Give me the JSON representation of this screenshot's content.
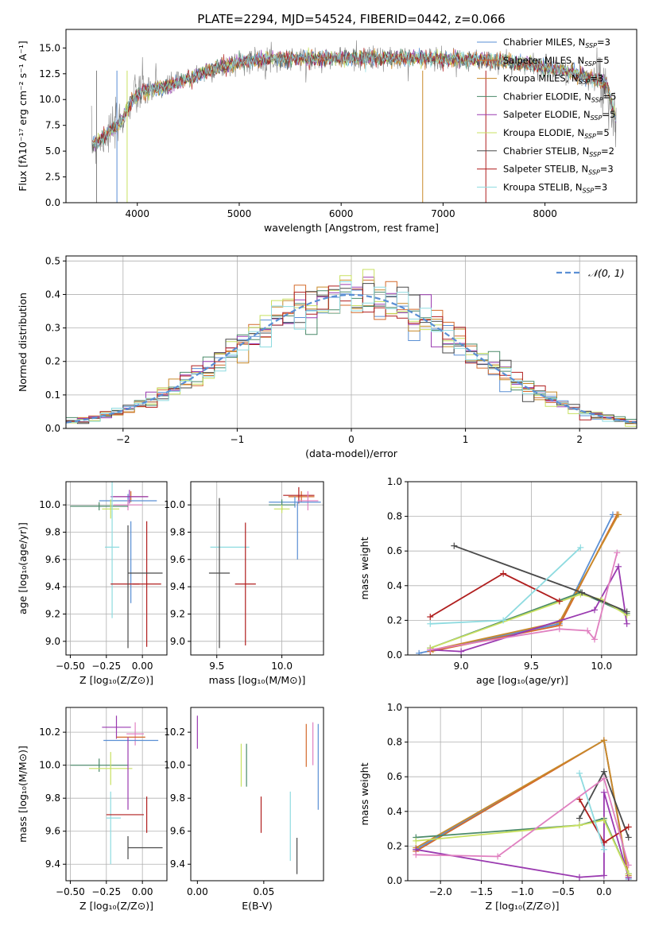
{
  "chart_data": [
    {
      "type": "line",
      "id": "spectrum",
      "title": "PLATE=2294, MJD=54524, FIBERID=0442, z=0.066",
      "xlabel": "wavelength [Angstrom, rest frame]",
      "ylabel": "Flux [fλ10⁻¹⁷ erg cm⁻² s⁻¹ A⁻¹]",
      "xlim": [
        3300,
        8900
      ],
      "ylim": [
        0,
        16.8
      ],
      "xticks": [
        4000,
        5000,
        6000,
        7000,
        8000
      ],
      "xtick_labels": [
        "4000",
        "5000",
        "6000",
        "7000",
        "8000"
      ],
      "yticks": [
        0,
        2.5,
        5,
        7.5,
        10,
        12.5,
        15
      ],
      "ytick_labels": [
        "0.0",
        "2.5",
        "5.0",
        "7.5",
        "10.0",
        "12.5",
        "15.0"
      ],
      "grid": false,
      "legend": "upper-right",
      "legend_entries": [
        {
          "label": "Chabrier MILES, N",
          "sub": "SSP",
          "suffix": "=3",
          "color": "#5a8fd4"
        },
        {
          "label": "Salpeter MILES, N",
          "sub": "SSP",
          "suffix": "=5",
          "color": "#d46a2a"
        },
        {
          "label": "Kroupa MILES, N",
          "sub": "SSP",
          "suffix": "=3",
          "color": "#c88a2a"
        },
        {
          "label": "Chabrier ELODIE, N",
          "sub": "SSP",
          "suffix": "=5",
          "color": "#4a8a6a"
        },
        {
          "label": "Salpeter ELODIE, N",
          "sub": "SSP",
          "suffix": "=5",
          "color": "#9a3ab0"
        },
        {
          "label": "Kroupa ELODIE, N",
          "sub": "SSP",
          "suffix": "=5",
          "color": "#c8e060"
        },
        {
          "label": "Chabrier STELIB, N",
          "sub": "SSP",
          "suffix": "=2",
          "color": "#4a4a4a"
        },
        {
          "label": "Salpeter STELIB, N",
          "sub": "SSP",
          "suffix": "=3",
          "color": "#b01e1e"
        },
        {
          "label": "Kroupa STELIB, N",
          "sub": "SSP",
          "suffix": "=3",
          "color": "#8edbe0"
        }
      ],
      "data_color": "#808080",
      "continuum": {
        "x": [
          3550,
          3650,
          3750,
          3850,
          3950,
          4050,
          4150,
          4300,
          4500,
          4700,
          5000,
          5300,
          5600,
          6000,
          6400,
          6800,
          7200,
          7600,
          8000,
          8300,
          8600,
          8700
        ],
        "y": [
          5.5,
          6.2,
          7.0,
          8.0,
          10.0,
          10.8,
          11.0,
          11.3,
          12.0,
          12.8,
          13.6,
          13.9,
          14.0,
          14.0,
          14.0,
          14.0,
          13.9,
          13.7,
          13.2,
          12.5,
          11.6,
          8.0
        ]
      }
    },
    {
      "type": "bar",
      "id": "residuals",
      "xlabel": "(data-model)/error",
      "ylabel": "Normed distribution",
      "xlim": [
        -2.5,
        2.5
      ],
      "ylim": [
        0,
        0.515
      ],
      "xticks": [
        -2,
        -1,
        0,
        1,
        2
      ],
      "xtick_labels": [
        "−2",
        "−1",
        "0",
        "1",
        "2"
      ],
      "yticks": [
        0,
        0.1,
        0.2,
        0.3,
        0.4,
        0.5
      ],
      "ytick_labels": [
        "0.0",
        "0.1",
        "0.2",
        "0.3",
        "0.4",
        "0.5"
      ],
      "grid": true,
      "legend": "upper-right",
      "gauss_label": "𝒩(0, 1)",
      "gauss_color": "#5a8fd4"
    },
    {
      "type": "scatter",
      "id": "age-vs-Z",
      "xlabel": "Z [log₁₀(Z/Z⊙)]",
      "ylabel": "age  [log₁₀(age/yr)]",
      "xlim": [
        -0.53,
        0.17
      ],
      "ylim": [
        8.9,
        10.17
      ],
      "xticks": [
        -0.5,
        -0.25,
        0.0
      ],
      "xtick_labels": [
        "−0.50",
        "−0.25",
        "0.00"
      ],
      "yticks": [
        9.0,
        9.2,
        9.4,
        9.6,
        9.8,
        10.0
      ],
      "ytick_labels": [
        "9.0",
        "9.2",
        "9.4",
        "9.6",
        "9.8",
        "10.0"
      ],
      "grid": true,
      "points": [
        {
          "x": -0.08,
          "y": 10.06,
          "xerr": 0.12,
          "yerr": 0.04,
          "color": "#d46a2a"
        },
        {
          "x": -0.1,
          "y": 10.03,
          "xerr": 0.2,
          "yerr": 0.05,
          "color": "#5a8fd4"
        },
        {
          "x": -0.09,
          "y": 10.06,
          "xerr": 0.13,
          "yerr": 0.05,
          "color": "#9a3ab0"
        },
        {
          "x": -0.1,
          "y": 10.0,
          "xerr": 0.1,
          "yerr": 0.04,
          "color": "#e080c0"
        },
        {
          "x": -0.3,
          "y": 9.99,
          "xerr": 0.2,
          "yerr": 0.03,
          "color": "#4a8a6a"
        },
        {
          "x": -0.22,
          "y": 9.97,
          "xerr": 0.06,
          "yerr": 0.07,
          "color": "#c8e060"
        },
        {
          "x": -0.21,
          "y": 9.69,
          "xerr": 0.05,
          "yerr": 0.52,
          "color": "#8edbe0"
        },
        {
          "x": -0.08,
          "y": 9.58,
          "xerr": 0.0,
          "yerr": 0.3,
          "color": "#5a8fd4"
        },
        {
          "x": 0.03,
          "y": 9.42,
          "xerr": 0.1,
          "yerr": 0.46,
          "color": "#b01e1e"
        },
        {
          "x": -0.12,
          "y": 9.42,
          "xerr": 0.1,
          "yerr": 0.0,
          "color": "#b01e1e"
        },
        {
          "x": 0.02,
          "y": 9.5,
          "xerr": 0.12,
          "yerr": 0.0,
          "color": "#4a4a4a"
        },
        {
          "x": -0.1,
          "y": 9.4,
          "xerr": 0.0,
          "yerr": 0.45,
          "color": "#4a4a4a"
        }
      ]
    },
    {
      "type": "scatter",
      "id": "age-vs-mass",
      "xlabel": "mass [log₁₀(M/M⊙)]",
      "xlim": [
        9.3,
        10.32
      ],
      "ylim": [
        8.9,
        10.17
      ],
      "xticks": [
        9.5,
        10.0
      ],
      "xtick_labels": [
        "9.5",
        "10.0"
      ],
      "yticks": [
        9.0,
        9.2,
        9.4,
        9.6,
        9.8,
        10.0
      ],
      "ytick_labels": [
        "9.0",
        "9.2",
        "9.4",
        "9.6",
        "9.8",
        "10.0"
      ],
      "grid": true,
      "points": [
        {
          "x": 10.15,
          "y": 10.06,
          "xerr": 0.1,
          "yerr": 0.04,
          "color": "#d46a2a"
        },
        {
          "x": 10.13,
          "y": 10.07,
          "xerr": 0.12,
          "yerr": 0.06,
          "color": "#b01e1e"
        },
        {
          "x": 10.2,
          "y": 10.03,
          "xerr": 0.08,
          "yerr": 0.07,
          "color": "#e080c0"
        },
        {
          "x": 10.1,
          "y": 10.02,
          "xerr": 0.2,
          "yerr": 0.04,
          "color": "#5a8fd4"
        },
        {
          "x": 10.12,
          "y": 9.81,
          "xerr": 0.0,
          "yerr": 0.21,
          "color": "#5a8fd4"
        },
        {
          "x": 10.0,
          "y": 10.0,
          "xerr": 0.1,
          "yerr": 0.04,
          "color": "#4a8a6a"
        },
        {
          "x": 10.0,
          "y": 9.97,
          "xerr": 0.06,
          "yerr": 0.03,
          "color": "#c8e060"
        },
        {
          "x": 9.6,
          "y": 9.69,
          "xerr": 0.15,
          "yerr": 0.0,
          "color": "#8edbe0"
        },
        {
          "x": 9.72,
          "y": 9.42,
          "xerr": 0.08,
          "yerr": 0.45,
          "color": "#b01e1e"
        },
        {
          "x": 9.52,
          "y": 9.5,
          "xerr": 0.08,
          "yerr": 0.55,
          "color": "#4a4a4a"
        }
      ]
    },
    {
      "type": "line",
      "id": "weights-vs-age",
      "xlabel": "age  [log₁₀(age/yr)]",
      "ylabel": "mass weight",
      "xlim": [
        8.62,
        10.25
      ],
      "ylim": [
        0,
        1.0
      ],
      "xticks": [
        9.0,
        9.5,
        10.0
      ],
      "xtick_labels": [
        "9.0",
        "9.5",
        "10.0"
      ],
      "yticks": [
        0,
        0.2,
        0.4,
        0.6,
        0.8,
        1.0
      ],
      "ytick_labels": [
        "0.0",
        "0.2",
        "0.4",
        "0.6",
        "0.8",
        "1.0"
      ],
      "grid": true,
      "series": [
        {
          "color": "#5a8fd4",
          "x": [
            8.7,
            9.7,
            10.08
          ],
          "y": [
            0.01,
            0.18,
            0.81
          ]
        },
        {
          "color": "#d46a2a",
          "x": [
            8.78,
            9.7,
            10.11
          ],
          "y": [
            0.02,
            0.17,
            0.81
          ]
        },
        {
          "color": "#c88a2a",
          "x": [
            8.8,
            9.7,
            10.12
          ],
          "y": [
            0.03,
            0.19,
            0.81
          ]
        },
        {
          "color": "#4a8a6a",
          "x": [
            8.78,
            9.85,
            10.18
          ],
          "y": [
            0.04,
            0.36,
            0.24
          ]
        },
        {
          "color": "#9a3ab0",
          "x": [
            8.78,
            9.0,
            9.95,
            10.12,
            10.18
          ],
          "y": [
            0.03,
            0.02,
            0.26,
            0.51,
            0.18
          ]
        },
        {
          "color": "#c8e060",
          "x": [
            8.78,
            9.85,
            10.0,
            10.18
          ],
          "y": [
            0.04,
            0.35,
            0.32,
            0.23
          ]
        },
        {
          "color": "#4a4a4a",
          "x": [
            8.95,
            9.86,
            10.18
          ],
          "y": [
            0.63,
            0.36,
            0.25
          ]
        },
        {
          "color": "#b01e1e",
          "x": [
            8.78,
            9.3,
            9.7
          ],
          "y": [
            0.22,
            0.47,
            0.31
          ]
        },
        {
          "color": "#8edbe0",
          "x": [
            8.78,
            9.3,
            9.85
          ],
          "y": [
            0.18,
            0.2,
            0.62
          ]
        },
        {
          "color": "#e080c0",
          "x": [
            8.78,
            9.7,
            9.9,
            9.95,
            10.11
          ],
          "y": [
            0.03,
            0.15,
            0.14,
            0.09,
            0.59
          ]
        }
      ]
    },
    {
      "type": "scatter",
      "id": "mass-vs-Z",
      "xlabel": "Z [log₁₀(Z/Z⊙)]",
      "ylabel": "mass [log₁₀(M/M⊙)]",
      "xlim": [
        -0.53,
        0.17
      ],
      "ylim": [
        9.3,
        10.35
      ],
      "xticks": [
        -0.5,
        -0.25,
        0.0
      ],
      "xtick_labels": [
        "−0.50",
        "−0.25",
        "0.00"
      ],
      "yticks": [
        9.4,
        9.6,
        9.8,
        10.0,
        10.2
      ],
      "ytick_labels": [
        "9.4",
        "9.6",
        "9.8",
        "10.0",
        "10.2"
      ],
      "grid": true,
      "points": [
        {
          "x": -0.18,
          "y": 10.23,
          "xerr": 0.1,
          "yerr": 0.07,
          "color": "#9a3ab0"
        },
        {
          "x": -0.05,
          "y": 10.19,
          "xerr": 0.06,
          "yerr": 0.07,
          "color": "#e080c0"
        },
        {
          "x": -0.08,
          "y": 10.17,
          "xerr": 0.1,
          "yerr": 0.0,
          "color": "#d46a2a"
        },
        {
          "x": -0.08,
          "y": 10.15,
          "xerr": 0.19,
          "yerr": 0.0,
          "color": "#5a8fd4"
        },
        {
          "x": -0.3,
          "y": 10.0,
          "xerr": 0.2,
          "yerr": 0.04,
          "color": "#4a8a6a"
        },
        {
          "x": -0.22,
          "y": 9.98,
          "xerr": 0.15,
          "yerr": 0.1,
          "color": "#c8e060"
        },
        {
          "x": -0.1,
          "y": 9.95,
          "xerr": 0.0,
          "yerr": 0.22,
          "color": "#9a3ab0"
        },
        {
          "x": -0.22,
          "y": 9.62,
          "xerr": 0.0,
          "yerr": 0.22,
          "color": "#8edbe0"
        },
        {
          "x": -0.2,
          "y": 9.68,
          "xerr": 0.05,
          "yerr": 0.0,
          "color": "#8edbe0"
        },
        {
          "x": -0.12,
          "y": 9.7,
          "xerr": 0.13,
          "yerr": 0.0,
          "color": "#b01e1e"
        },
        {
          "x": 0.03,
          "y": 9.7,
          "xerr": 0.0,
          "yerr": 0.11,
          "color": "#b01e1e"
        },
        {
          "x": 0.02,
          "y": 9.5,
          "xerr": 0.12,
          "yerr": 0.0,
          "color": "#4a4a4a"
        },
        {
          "x": -0.1,
          "y": 9.5,
          "xerr": 0.0,
          "yerr": 0.07,
          "color": "#4a4a4a"
        }
      ]
    },
    {
      "type": "scatter",
      "id": "mass-vs-EBV",
      "xlabel": "E(B-V)",
      "xlim": [
        -0.005,
        0.095
      ],
      "ylim": [
        9.3,
        10.35
      ],
      "xticks": [
        0.0,
        0.05
      ],
      "xtick_labels": [
        "0.00",
        "0.05"
      ],
      "yticks": [
        9.4,
        9.6,
        9.8,
        10.0,
        10.2
      ],
      "ytick_labels": [
        "9.4",
        "9.6",
        "9.8",
        "10.0",
        "10.2"
      ],
      "grid": false,
      "points": [
        {
          "x": 0.0,
          "y": 10.2,
          "yerr": 0.1,
          "color": "#9a3ab0"
        },
        {
          "x": 0.033,
          "y": 10.0,
          "yerr": 0.13,
          "color": "#c8e060"
        },
        {
          "x": 0.037,
          "y": 10.0,
          "yerr": 0.13,
          "color": "#4a8a6a"
        },
        {
          "x": 0.048,
          "y": 9.7,
          "yerr": 0.11,
          "color": "#b01e1e"
        },
        {
          "x": 0.07,
          "y": 9.63,
          "yerr": 0.21,
          "color": "#8edbe0"
        },
        {
          "x": 0.075,
          "y": 9.45,
          "yerr": 0.11,
          "color": "#4a4a4a"
        },
        {
          "x": 0.082,
          "y": 10.12,
          "yerr": 0.13,
          "color": "#d46a2a"
        },
        {
          "x": 0.087,
          "y": 10.13,
          "yerr": 0.13,
          "color": "#e080c0"
        },
        {
          "x": 0.091,
          "y": 9.99,
          "yerr": 0.26,
          "color": "#5a8fd4"
        }
      ]
    },
    {
      "type": "line",
      "id": "weights-vs-Z",
      "xlabel": "Z [log₁₀(Z/Z⊙)]",
      "ylabel": "mass weight",
      "xlim": [
        -2.4,
        0.4
      ],
      "ylim": [
        0,
        1.0
      ],
      "xticks": [
        -2.0,
        -1.5,
        -1.0,
        -0.5,
        0.0
      ],
      "xtick_labels": [
        "−2.0",
        "−1.5",
        "−1.0",
        "−0.5",
        "0.0"
      ],
      "yticks": [
        0,
        0.2,
        0.4,
        0.6,
        0.8,
        1.0
      ],
      "ytick_labels": [
        "0.0",
        "0.2",
        "0.4",
        "0.6",
        "0.8",
        "1.0"
      ],
      "grid": true,
      "series": [
        {
          "color": "#5a8fd4",
          "x": [
            -2.3,
            0.0,
            0.3
          ],
          "y": [
            0.18,
            0.81,
            0.01
          ]
        },
        {
          "color": "#d46a2a",
          "x": [
            -2.3,
            0.0,
            0.3
          ],
          "y": [
            0.17,
            0.81,
            0.02
          ]
        },
        {
          "color": "#c88a2a",
          "x": [
            -2.3,
            0.0,
            0.3
          ],
          "y": [
            0.19,
            0.81,
            0.03
          ]
        },
        {
          "color": "#4a8a6a",
          "x": [
            -2.3,
            -0.3,
            0.0,
            0.3
          ],
          "y": [
            0.25,
            0.32,
            0.36,
            0.04
          ]
        },
        {
          "color": "#9a3ab0",
          "x": [
            -2.3,
            -0.3,
            0.0,
            0.0,
            0.3
          ],
          "y": [
            0.18,
            0.02,
            0.03,
            0.51,
            0.02
          ]
        },
        {
          "color": "#c8e060",
          "x": [
            -2.3,
            -0.3,
            0.0,
            0.3
          ],
          "y": [
            0.23,
            0.32,
            0.35,
            0.04
          ]
        },
        {
          "color": "#4a4a4a",
          "x": [
            -0.3,
            0.0,
            0.3
          ],
          "y": [
            0.36,
            0.63,
            0.25
          ]
        },
        {
          "color": "#b01e1e",
          "x": [
            -0.3,
            0.0,
            0.3
          ],
          "y": [
            0.47,
            0.22,
            0.31
          ]
        },
        {
          "color": "#8edbe0",
          "x": [
            -0.3,
            0.0
          ],
          "y": [
            0.62,
            0.18
          ]
        },
        {
          "color": "#e080c0",
          "x": [
            -2.3,
            -1.3,
            0.0,
            0.3
          ],
          "y": [
            0.15,
            0.14,
            0.59,
            0.09
          ]
        }
      ]
    }
  ]
}
